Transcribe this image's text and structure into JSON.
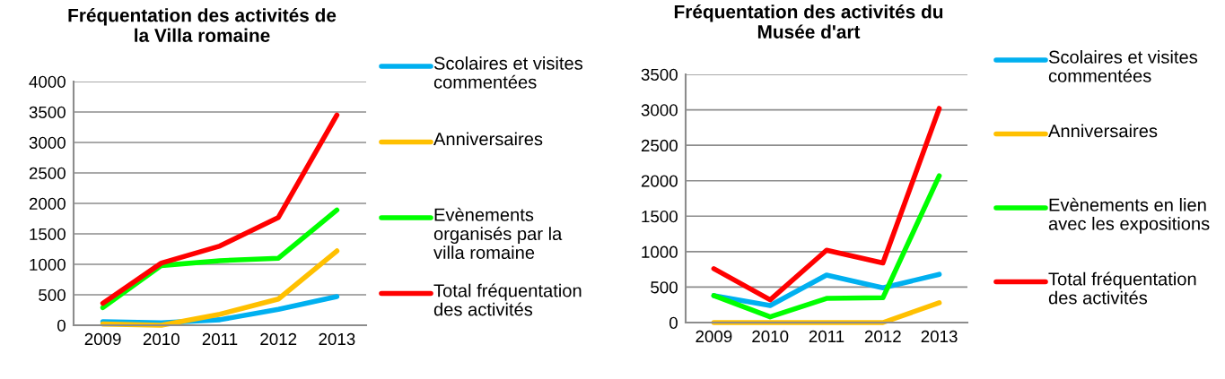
{
  "chart_data": [
    {
      "type": "line",
      "title": "Fréquentation des activités de la Villa romaine",
      "categories": [
        "2009",
        "2010",
        "2011",
        "2012",
        "2013"
      ],
      "ylim": [
        0,
        4000
      ],
      "yticks": [
        0,
        500,
        1000,
        1500,
        2000,
        2500,
        3000,
        3500,
        4000
      ],
      "grid": "y",
      "legend": "right",
      "marker": "none",
      "line_style": "solid",
      "series": [
        {
          "name": "Scolaires et visites commentées",
          "color": "#00b0f0",
          "values": [
            60,
            40,
            90,
            260,
            470
          ]
        },
        {
          "name": "Anniversaires",
          "color": "#ffc000",
          "values": [
            20,
            0,
            180,
            430,
            1220
          ]
        },
        {
          "name": "Evènements organisés par la villa romaine",
          "color": "#00ff00",
          "values": [
            290,
            980,
            1060,
            1100,
            1890
          ]
        },
        {
          "name": "Total fréquentation des activités",
          "color": "#ff0000",
          "values": [
            360,
            1020,
            1300,
            1770,
            3450
          ]
        }
      ]
    },
    {
      "type": "line",
      "title": "Fréquentation des activités du Musée d'art",
      "categories": [
        "2009",
        "2010",
        "2011",
        "2012",
        "2013"
      ],
      "ylim": [
        0,
        3500
      ],
      "yticks": [
        0,
        500,
        1000,
        1500,
        2000,
        2500,
        3000,
        3500
      ],
      "grid": "y",
      "legend": "right",
      "marker": "none",
      "line_style": "solid",
      "series": [
        {
          "name": "Scolaires et visites commentées",
          "color": "#00b0f0",
          "values": [
            380,
            240,
            670,
            490,
            680
          ]
        },
        {
          "name": "Anniversaires",
          "color": "#ffc000",
          "values": [
            0,
            0,
            0,
            0,
            280
          ]
        },
        {
          "name": "Evènements en lien avec les expositions",
          "color": "#00ff00",
          "values": [
            380,
            80,
            340,
            350,
            2070
          ]
        },
        {
          "name": "Total fréquentation des activités",
          "color": "#ff0000",
          "values": [
            760,
            320,
            1020,
            840,
            3020
          ]
        }
      ]
    }
  ]
}
